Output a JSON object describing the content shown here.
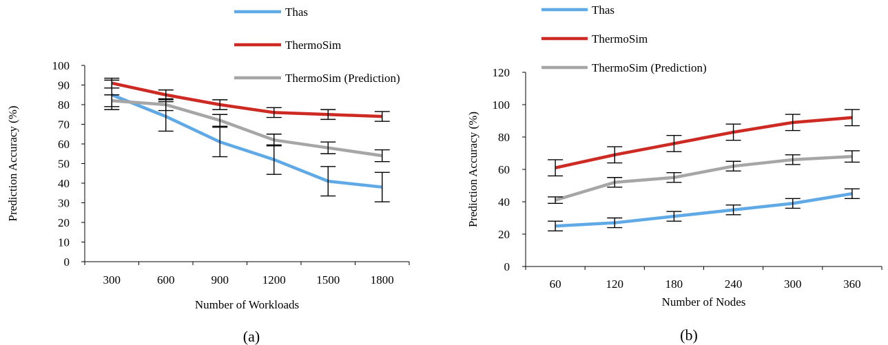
{
  "captions": [
    "(a)",
    "(b)"
  ],
  "chart_data": [
    {
      "type": "line",
      "title": "",
      "xlabel": "Number of Workloads",
      "ylabel": "Prediction Accuracy (%)",
      "categories": [
        "300",
        "600",
        "900",
        "1200",
        "1500",
        "1800"
      ],
      "ylim": [
        0,
        100
      ],
      "ytick_step": 10,
      "grid": false,
      "legend_position": "top-right",
      "series": [
        {
          "name": "Thas",
          "color": "#5ea9e6",
          "values": [
            85,
            74,
            61,
            52,
            41,
            38
          ],
          "err": [
            7.5,
            7.5,
            7.5,
            7.5,
            7.5,
            7.5
          ]
        },
        {
          "name": "ThermoSim",
          "color": "#cc2a22",
          "values": [
            91,
            85,
            80,
            76,
            75,
            74
          ],
          "err": [
            2.5,
            2.5,
            2.5,
            2.5,
            2.5,
            2.5
          ]
        },
        {
          "name": "ThermoSim (Prediction)",
          "color": "#a6a6a6",
          "values": [
            82,
            80,
            72,
            62,
            58,
            54
          ],
          "err": [
            3,
            3,
            3,
            3,
            3,
            3
          ]
        }
      ]
    },
    {
      "type": "line",
      "title": "",
      "xlabel": "Number of Nodes",
      "ylabel": "Prediction Accuracy (%)",
      "categories": [
        "60",
        "120",
        "180",
        "240",
        "300",
        "360"
      ],
      "ylim": [
        0,
        120
      ],
      "ytick_step": 20,
      "grid": false,
      "legend_position": "top-left",
      "series": [
        {
          "name": "Thas",
          "color": "#5ea9e6",
          "values": [
            25,
            27,
            31,
            35,
            39,
            45
          ],
          "err": [
            3,
            3,
            3,
            3,
            3,
            3
          ]
        },
        {
          "name": "ThermoSim",
          "color": "#cc2a22",
          "values": [
            61,
            69,
            76,
            83,
            89,
            92
          ],
          "err": [
            5,
            5,
            5,
            5,
            5,
            5
          ]
        },
        {
          "name": "ThermoSim (Prediction)",
          "color": "#a6a6a6",
          "values": [
            41,
            52,
            55,
            62,
            66,
            68
          ],
          "err": [
            2,
            3,
            3,
            3,
            3,
            3.5
          ]
        }
      ]
    }
  ]
}
